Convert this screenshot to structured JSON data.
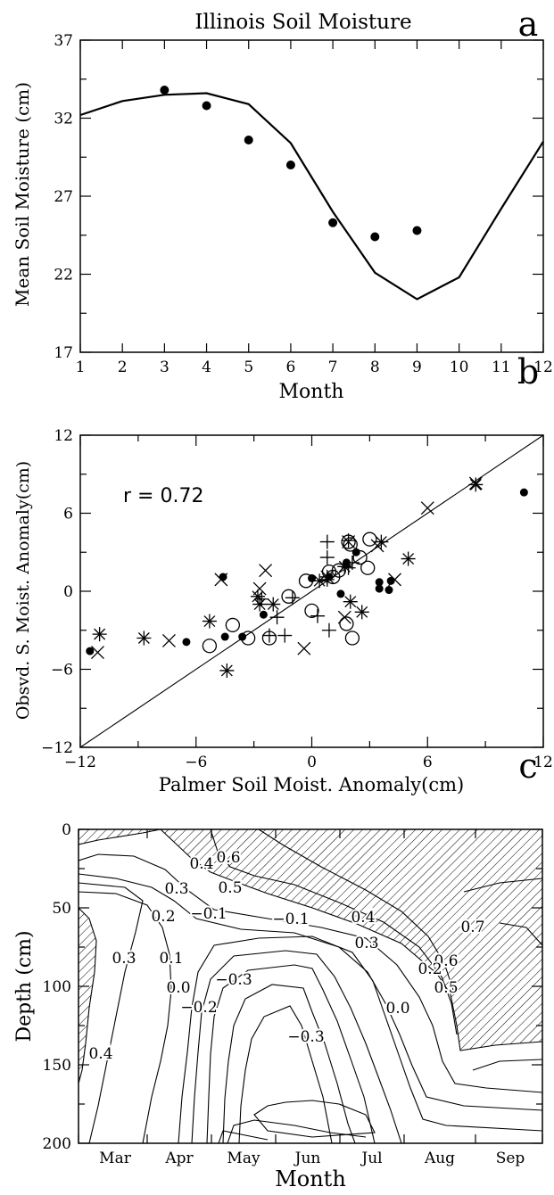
{
  "chart_data": [
    {
      "panel": "a",
      "type": "line",
      "title": "Illinois Soil Moisture",
      "xlabel": "Month",
      "ylabel": "Mean Soil Moisture (cm)",
      "xlim": [
        1,
        12
      ],
      "ylim": [
        17,
        37
      ],
      "xticks": [
        "1",
        "2",
        "3",
        "4",
        "5",
        "6",
        "7",
        "8",
        "9",
        "10",
        "11",
        "12"
      ],
      "yticks": [
        "17",
        "22",
        "27",
        "32",
        "37"
      ],
      "series": [
        {
          "style": "line",
          "x": [
            1,
            2,
            3,
            4,
            5,
            6,
            7,
            8,
            9,
            10,
            11,
            12
          ],
          "y": [
            32.2,
            33.1,
            33.5,
            33.6,
            32.9,
            30.4,
            26.0,
            22.1,
            20.4,
            21.8,
            26.2,
            30.5
          ]
        },
        {
          "style": "filled-circles",
          "x": [
            3,
            4,
            5,
            6,
            7,
            8,
            9
          ],
          "y": [
            33.8,
            32.8,
            30.6,
            29.0,
            25.3,
            24.4,
            24.8
          ]
        }
      ]
    },
    {
      "panel": "b",
      "type": "scatter",
      "xlabel": "Palmer Soil Moist. Anomaly(cm)",
      "ylabel": "Obsvd. S. Moist. Anomaly(cm)",
      "annotation": "r = 0.72",
      "xlim": [
        -12,
        12
      ],
      "ylim": [
        -12,
        12
      ],
      "xticks": [
        "−12",
        "−6",
        "0",
        "6",
        "12"
      ],
      "yticks": [
        "−12",
        "−6",
        "0",
        "6",
        "12"
      ],
      "reference_line": {
        "x": [
          -12,
          12
        ],
        "y": [
          -12,
          12
        ]
      },
      "series": [
        {
          "marker": "filled-circle",
          "points": [
            [
              -11.5,
              -4.6
            ],
            [
              -6.5,
              -3.9
            ],
            [
              -4.6,
              1.1
            ],
            [
              -4.5,
              -3.5
            ],
            [
              -3.6,
              -3.5
            ],
            [
              -2.5,
              -1.8
            ],
            [
              0,
              1.0
            ],
            [
              0.9,
              1.1
            ],
            [
              1.5,
              -0.2
            ],
            [
              1.8,
              2.2
            ],
            [
              2.3,
              3.0
            ],
            [
              3.5,
              0.2
            ],
            [
              3.5,
              0.7
            ],
            [
              4.0,
              0.1
            ],
            [
              4.1,
              0.8
            ],
            [
              11.0,
              7.6
            ]
          ]
        },
        {
          "marker": "open-circle",
          "points": [
            [
              -5.3,
              -4.2
            ],
            [
              -4.1,
              -2.6
            ],
            [
              -3.3,
              -3.6
            ],
            [
              -2.2,
              -3.6
            ],
            [
              -1.2,
              -0.4
            ],
            [
              -0.3,
              0.8
            ],
            [
              0,
              -1.5
            ],
            [
              0.9,
              1.5
            ],
            [
              1.1,
              1.1
            ],
            [
              1.4,
              1.6
            ],
            [
              1.8,
              -2.5
            ],
            [
              1.9,
              3.8
            ],
            [
              2.0,
              3.6
            ],
            [
              2.1,
              -3.6
            ],
            [
              2.5,
              2.6
            ],
            [
              2.9,
              1.8
            ],
            [
              3.0,
              4.0
            ]
          ]
        },
        {
          "marker": "plus",
          "points": [
            [
              -2.6,
              -0.6
            ],
            [
              -2.2,
              -3.4
            ],
            [
              -1.8,
              -2.0
            ],
            [
              -1.4,
              -3.4
            ],
            [
              -1.0,
              -0.5
            ],
            [
              0.3,
              -1.9
            ],
            [
              0.8,
              1.1
            ],
            [
              0.8,
              0.9
            ],
            [
              0.8,
              2.6
            ],
            [
              0.8,
              3.8
            ],
            [
              0.9,
              -3.0
            ],
            [
              1.9,
              1.8
            ],
            [
              1.9,
              3.9
            ],
            [
              2.1,
              2.2
            ]
          ]
        },
        {
          "marker": "cross",
          "points": [
            [
              -11.1,
              -4.7
            ],
            [
              -7.4,
              -3.8
            ],
            [
              -4.7,
              0.9
            ],
            [
              -2.4,
              1.6
            ],
            [
              -2.7,
              0.2
            ],
            [
              -0.4,
              -4.4
            ],
            [
              0.8,
              1.1
            ],
            [
              1.9,
              3.8
            ],
            [
              1.7,
              -2.0
            ],
            [
              3.4,
              3.5
            ],
            [
              4.3,
              0.9
            ],
            [
              6.0,
              6.4
            ],
            [
              8.5,
              8.3
            ]
          ]
        },
        {
          "marker": "asterisk",
          "points": [
            [
              -11.0,
              -3.3
            ],
            [
              -8.7,
              -3.6
            ],
            [
              -5.3,
              -2.3
            ],
            [
              -4.4,
              -6.1
            ],
            [
              -2.8,
              -0.4
            ],
            [
              -2.7,
              -1.0
            ],
            [
              -2.0,
              -1.0
            ],
            [
              0.4,
              0.8
            ],
            [
              1.7,
              1.9
            ],
            [
              2.0,
              -0.8
            ],
            [
              2.6,
              -1.6
            ],
            [
              3.6,
              3.8
            ],
            [
              5.0,
              2.5
            ],
            [
              8.5,
              8.2
            ]
          ]
        }
      ]
    },
    {
      "panel": "c",
      "type": "contour",
      "xlabel": "Month",
      "ylabel": "Depth (cm)",
      "xticks": [
        "Mar",
        "Apr",
        "May",
        "Jun",
        "Jul",
        "Aug",
        "Sep"
      ],
      "yticks": [
        "0",
        "50",
        "100",
        "150",
        "200"
      ],
      "ylim": [
        200,
        0
      ],
      "hatching": "regions with values ≥ 0.4 (top-right) and along left edge below 50 cm",
      "contour_labels": [
        "0.4",
        "0.6",
        "0.3",
        "0.5",
        "0.4",
        "0.7",
        "0.2",
        "−0.1",
        "−0.1",
        "0.3",
        "0.3",
        "0.1",
        "0.6",
        "0.2",
        "0.0",
        "−0.3",
        "0.5",
        "−0.2",
        "0.0",
        "−0.3",
        "0.4"
      ]
    }
  ],
  "panel_letters": [
    "a",
    "b",
    "c"
  ]
}
